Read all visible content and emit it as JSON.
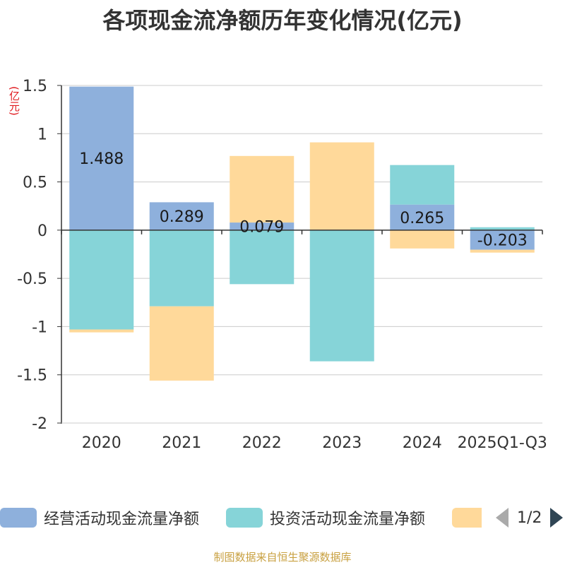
{
  "chart_data": {
    "type": "bar",
    "stacked": true,
    "title": "各项现金流净额历年变化情况(亿元)",
    "ylabel": "(亿元)",
    "ylim": [
      -2,
      1.5
    ],
    "yticks": [
      1.5,
      1,
      0.5,
      0,
      -0.5,
      -1,
      -1.5,
      -2
    ],
    "ytick_labels": [
      "1.5",
      "1",
      "0.5",
      "0",
      "-0.5",
      "-1",
      "-1.5",
      "-2"
    ],
    "grid": true,
    "categories": [
      "2020",
      "2021",
      "2022",
      "2023",
      "2024",
      "2025Q1-Q3"
    ],
    "series": [
      {
        "name": "经营活动现金流量净额",
        "color": "#8eb0dc",
        "values": [
          1.488,
          0.289,
          0.079,
          0.0,
          0.265,
          -0.203
        ],
        "labels": [
          "1.488",
          "0.289",
          "0.079",
          "",
          "0.265",
          "-0.203"
        ]
      },
      {
        "name": "投资活动现金流量净额",
        "color": "#86d4d8",
        "values": [
          -1.03,
          -0.79,
          -0.56,
          -1.36,
          0.41,
          0.03
        ]
      },
      {
        "name": "",
        "color": "#ffd99a",
        "values": [
          -0.03,
          -0.77,
          0.69,
          0.91,
          -0.19,
          -0.03
        ]
      }
    ]
  },
  "legend": {
    "items": [
      {
        "label": "经营活动现金流量净额",
        "color": "#8eb0dc"
      },
      {
        "label": "投资活动现金流量净额",
        "color": "#86d4d8"
      },
      {
        "label": "",
        "color": "#ffd99a"
      }
    ],
    "page_text": "1/2"
  },
  "footer": {
    "source": "制图数据来自恒生聚源数据库"
  }
}
